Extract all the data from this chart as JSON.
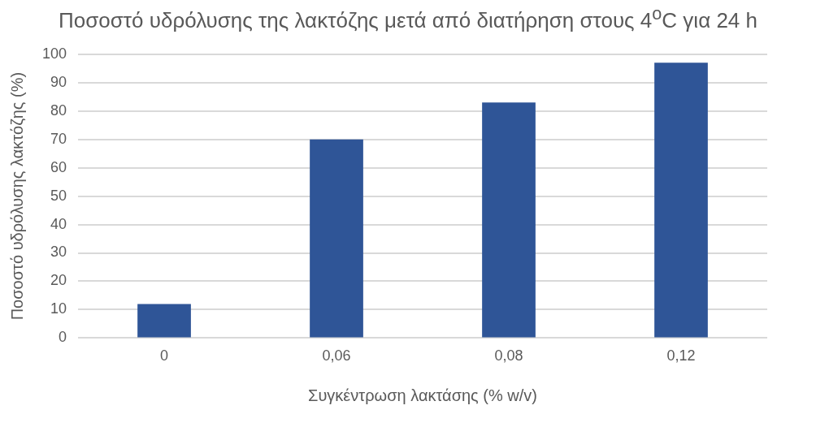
{
  "chart_data": {
    "type": "bar",
    "title": "Ποσοστό υδρόλυσης της λακτόζης μετά από διατήρηση στους 4$^{o}$C για 24 h",
    "xlabel": "Συγκέντρωση λακτάσης (% w/v)",
    "ylabel": "Ποσοστό υδρόλυσης λακτόζης (%)",
    "categories": [
      "0",
      "0,06",
      "0,08",
      "0,12"
    ],
    "values": [
      12,
      70,
      83,
      97
    ],
    "color": "#2f5597",
    "ylim": [
      0,
      100
    ],
    "yticks": [
      0,
      10,
      20,
      30,
      40,
      50,
      60,
      70,
      80,
      90,
      100
    ],
    "grid": "y"
  }
}
